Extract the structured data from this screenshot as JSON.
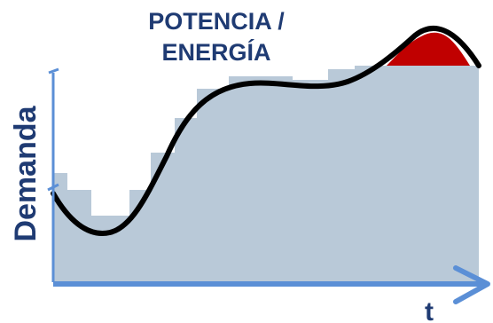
{
  "title": {
    "line1": "POTENCIA /",
    "line2": "ENERGÍA"
  },
  "axes": {
    "y_label": "Demanda",
    "x_label": "t"
  },
  "colors": {
    "title": "#1f3b73",
    "axis": "#5b8fd6",
    "label": "#1f3b73",
    "steps_fill": "#b9c9d8",
    "curve": "#000000",
    "peak_fill": "#c00000"
  }
}
